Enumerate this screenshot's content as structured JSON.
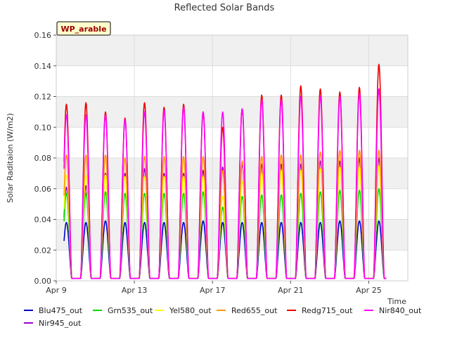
{
  "chart_data": {
    "type": "line",
    "title": "Reflected Solar Bands",
    "xlabel": "Time",
    "ylabel": "Solar Raditaion (W/m2)",
    "badge": "WP_arable",
    "ylim": [
      0,
      0.16
    ],
    "xlim_days": [
      0,
      18
    ],
    "yticks": [
      "0.00",
      "0.02",
      "0.04",
      "0.06",
      "0.08",
      "0.10",
      "0.12",
      "0.14",
      "0.16"
    ],
    "xticks": [
      {
        "day": 0,
        "label": "Apr 9"
      },
      {
        "day": 4,
        "label": "Apr 13"
      },
      {
        "day": 8,
        "label": "Apr 17"
      },
      {
        "day": 12,
        "label": "Apr 21"
      },
      {
        "day": 16,
        "label": "Apr 25"
      }
    ],
    "grid": true,
    "legend_position": "bottom",
    "day_labels": [
      "Apr 9",
      "Apr 10",
      "Apr 11",
      "Apr 12",
      "Apr 13",
      "Apr 14",
      "Apr 15",
      "Apr 16",
      "Apr 17",
      "Apr 18",
      "Apr 19",
      "Apr 20",
      "Apr 21",
      "Apr 22",
      "Apr 23",
      "Apr 24",
      "Apr 25",
      "Apr 26"
    ],
    "series": [
      {
        "name": "Blu475_out",
        "color": "#0000cc",
        "daily_peak": [
          0.038,
          0.038,
          0.039,
          0.038,
          0.038,
          0.038,
          0.038,
          0.039,
          0.038,
          0.038,
          0.038,
          0.038,
          0.038,
          0.038,
          0.039,
          0.039,
          0.039,
          0.039
        ]
      },
      {
        "name": "Grn535_out",
        "color": "#00dd00",
        "daily_peak": [
          0.057,
          0.057,
          0.058,
          0.057,
          0.057,
          0.057,
          0.057,
          0.058,
          0.048,
          0.055,
          0.056,
          0.056,
          0.057,
          0.058,
          0.059,
          0.059,
          0.06,
          0.06
        ]
      },
      {
        "name": "Yel580_out",
        "color": "#ffff00",
        "daily_peak": [
          0.069,
          0.069,
          0.069,
          0.068,
          0.068,
          0.068,
          0.068,
          0.068,
          0.055,
          0.065,
          0.07,
          0.072,
          0.072,
          0.073,
          0.074,
          0.074,
          0.075,
          0.075
        ]
      },
      {
        "name": "Red655_out",
        "color": "#ff9900",
        "daily_peak": [
          0.082,
          0.082,
          0.082,
          0.08,
          0.081,
          0.081,
          0.081,
          0.081,
          0.072,
          0.078,
          0.081,
          0.082,
          0.082,
          0.084,
          0.085,
          0.085,
          0.085,
          0.087
        ]
      },
      {
        "name": "Redg715_out",
        "color": "#ee0000",
        "daily_peak": [
          0.115,
          0.116,
          0.11,
          0.106,
          0.116,
          0.113,
          0.115,
          0.11,
          0.1,
          0.112,
          0.121,
          0.121,
          0.127,
          0.125,
          0.123,
          0.126,
          0.141,
          0.141
        ]
      },
      {
        "name": "Nir840_out",
        "color": "#ff00ff",
        "daily_peak": [
          0.108,
          0.108,
          0.108,
          0.105,
          0.11,
          0.111,
          0.113,
          0.11,
          0.11,
          0.112,
          0.118,
          0.118,
          0.12,
          0.12,
          0.12,
          0.122,
          0.125,
          0.125
        ]
      },
      {
        "name": "Nir945_out",
        "color": "#9900cc",
        "daily_peak": [
          0.061,
          0.062,
          0.07,
          0.07,
          0.073,
          0.07,
          0.07,
          0.072,
          0.074,
          0.076,
          0.076,
          0.076,
          0.076,
          0.078,
          0.078,
          0.08,
          0.08,
          0.08
        ]
      }
    ]
  }
}
